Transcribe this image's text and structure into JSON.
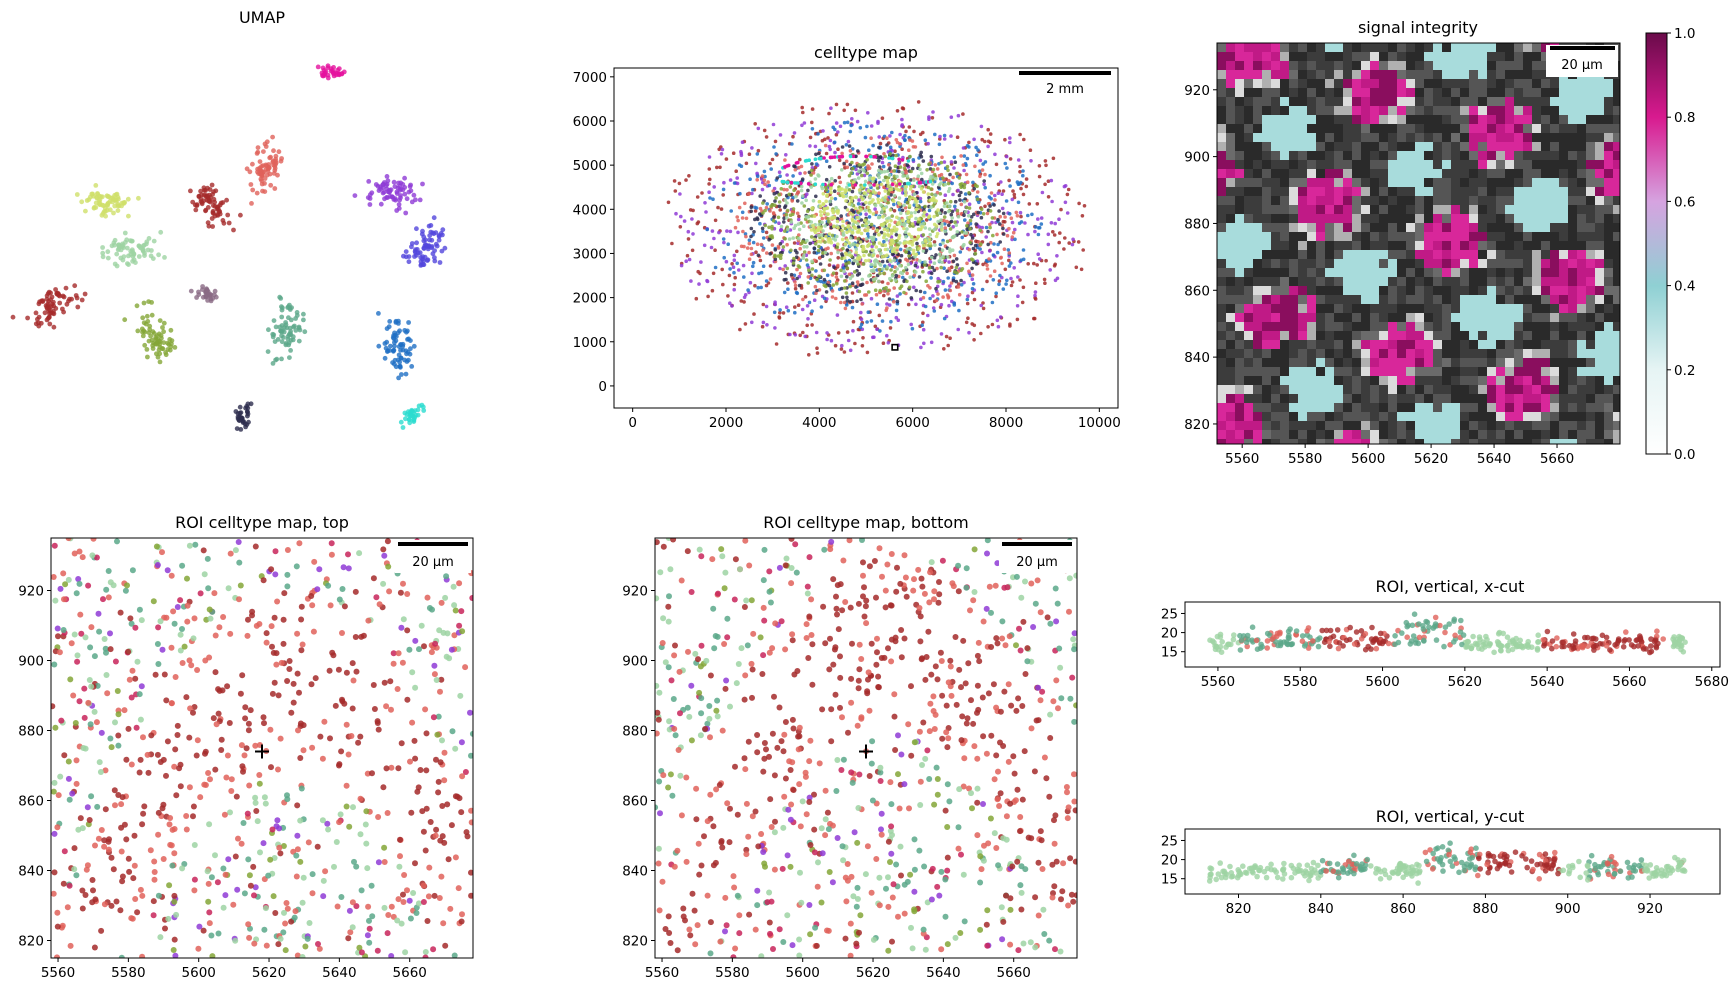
{
  "colors": {
    "red": "#a52a2a",
    "salmon": "#e0625a",
    "teal": "#5ba889",
    "mint": "#9dd3a3",
    "olive": "#84a637",
    "purple": "#8f3bd6",
    "violet": "#5246dc",
    "blue": "#1f6fc4",
    "cyan": "#2cdcd0",
    "pink": "#e5119e",
    "navy": "#2d2d4d",
    "lime": "#cfe06a",
    "mauve": "#8a6a85",
    "crimson": "#c8245a",
    "black": "#000000"
  },
  "chart_data": [
    {
      "id": "umap",
      "type": "scatter",
      "title": "UMAP",
      "note_points": "clusters",
      "clusters": [
        {
          "x": 0.17,
          "y": 0.4,
          "color": "lime"
        },
        {
          "x": 0.22,
          "y": 0.52,
          "color": "mint"
        },
        {
          "x": 0.4,
          "y": 0.42,
          "color": "red"
        },
        {
          "x": 0.51,
          "y": 0.32,
          "color": "salmon"
        },
        {
          "x": 0.78,
          "y": 0.38,
          "color": "purple"
        },
        {
          "x": 0.85,
          "y": 0.52,
          "color": "violet"
        },
        {
          "x": 0.27,
          "y": 0.75,
          "color": "olive"
        },
        {
          "x": 0.55,
          "y": 0.73,
          "color": "teal"
        },
        {
          "x": 0.38,
          "y": 0.64,
          "color": "mauve"
        },
        {
          "x": 0.79,
          "y": 0.77,
          "color": "blue"
        },
        {
          "x": 0.46,
          "y": 0.95,
          "color": "navy"
        },
        {
          "x": 0.82,
          "y": 0.95,
          "color": "cyan"
        },
        {
          "x": 0.65,
          "y": 0.07,
          "color": "pink"
        },
        {
          "x": 0.05,
          "y": 0.67,
          "color": "red"
        }
      ]
    },
    {
      "id": "celltype_map",
      "type": "scatter",
      "title": "celltype map",
      "xlim": [
        -400,
        10400
      ],
      "ylim": [
        -500,
        7200
      ],
      "xticks": [
        "0",
        "2000",
        "4000",
        "6000",
        "8000",
        "10000"
      ],
      "yticks": [
        "0",
        "1000",
        "2000",
        "3000",
        "4000",
        "5000",
        "6000",
        "7000"
      ],
      "scalebar": "2 mm",
      "roi_box": {
        "x": [
          5560,
          5680
        ],
        "y": [
          815,
          935
        ]
      }
    },
    {
      "id": "signal_integrity",
      "type": "heatmap",
      "title": "signal integrity",
      "xlim": [
        5552,
        5680
      ],
      "ylim": [
        814,
        934
      ],
      "xticks": [
        "5560",
        "5580",
        "5600",
        "5620",
        "5640",
        "5660"
      ],
      "yticks": [
        "820",
        "840",
        "860",
        "880",
        "900",
        "920"
      ],
      "scalebar": "20 µm",
      "colorbar": {
        "min": 0.0,
        "max": 1.0,
        "ticks": [
          "0.0",
          "0.2",
          "0.4",
          "0.6",
          "0.8",
          "1.0"
        ]
      }
    },
    {
      "id": "roi_top",
      "type": "scatter",
      "title": "ROI celltype map, top",
      "xlim": [
        5558,
        5678
      ],
      "ylim": [
        815,
        935
      ],
      "xticks": [
        "5560",
        "5580",
        "5600",
        "5620",
        "5640",
        "5660"
      ],
      "yticks": [
        "820",
        "840",
        "860",
        "880",
        "900",
        "920"
      ],
      "scalebar": "20 µm",
      "marker": [
        5618,
        874
      ]
    },
    {
      "id": "roi_bottom",
      "type": "scatter",
      "title": "ROI celltype map, bottom",
      "xlim": [
        5558,
        5678
      ],
      "ylim": [
        815,
        935
      ],
      "xticks": [
        "5560",
        "5580",
        "5600",
        "5620",
        "5640",
        "5660"
      ],
      "yticks": [
        "820",
        "840",
        "860",
        "880",
        "900",
        "920"
      ],
      "scalebar": "20 µm",
      "marker": [
        5618,
        874
      ]
    },
    {
      "id": "xcut",
      "type": "scatter",
      "title": "ROI, vertical, x-cut",
      "xlim": [
        5552,
        5682
      ],
      "ylim": [
        11,
        28
      ],
      "xticks": [
        "5560",
        "5580",
        "5600",
        "5620",
        "5640",
        "5660",
        "5680"
      ],
      "yticks": [
        "15",
        "20",
        "25"
      ]
    },
    {
      "id": "ycut",
      "type": "scatter",
      "title": "ROI, vertical, y-cut",
      "xlim": [
        807,
        937
      ],
      "ylim": [
        11,
        28
      ],
      "xticks": [
        "820",
        "840",
        "860",
        "880",
        "900",
        "920"
      ],
      "yticks": [
        "15",
        "20",
        "25"
      ]
    }
  ]
}
